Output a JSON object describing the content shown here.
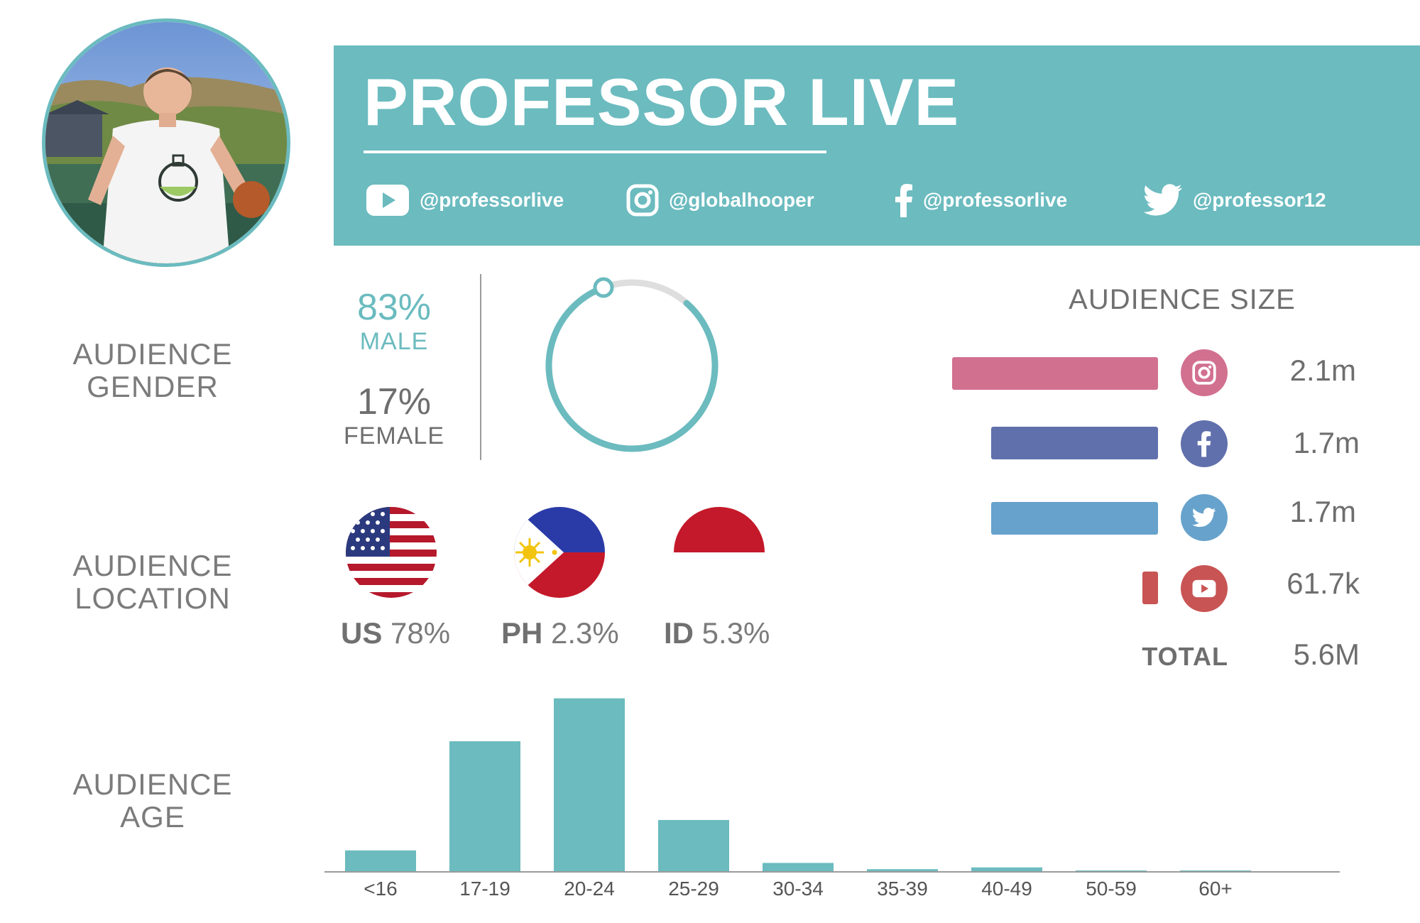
{
  "header": {
    "title": "PROFESSOR LIVE",
    "socials": [
      {
        "platform": "youtube",
        "icon": "youtube-icon",
        "handle": "@professorlive"
      },
      {
        "platform": "instagram",
        "icon": "instagram-icon",
        "handle": "@globalhooper"
      },
      {
        "platform": "facebook",
        "icon": "facebook-icon",
        "handle": "@professorlive"
      },
      {
        "platform": "twitter",
        "icon": "twitter-icon",
        "handle": "@professor12"
      }
    ]
  },
  "sections": {
    "gender_line1": "AUDIENCE",
    "gender_line2": "GENDER",
    "location_line1": "AUDIENCE",
    "location_line2": "LOCATION",
    "age_line1": "AUDIENCE",
    "age_line2": "AGE"
  },
  "gender": {
    "male_pct": "83%",
    "male_label": "MALE",
    "female_pct": "17%",
    "female_label": "FEMALE",
    "male_fraction": 0.83
  },
  "location": [
    {
      "code": "US",
      "pct": "78%",
      "flag": "us-flag-icon"
    },
    {
      "code": "PH",
      "pct": "2.3%",
      "flag": "ph-flag-icon"
    },
    {
      "code": "ID",
      "pct": "5.3%",
      "flag": "id-flag-icon"
    }
  ],
  "audience_size": {
    "title": "AUDIENCE SIZE",
    "rows": [
      {
        "platform": "instagram",
        "icon": "instagram-icon",
        "value": "2.1m",
        "amount": 2.1,
        "color": "#d27090"
      },
      {
        "platform": "facebook",
        "icon": "facebook-icon",
        "value": "1.7m",
        "amount": 1.7,
        "color": "#6070ac"
      },
      {
        "platform": "twitter",
        "icon": "twitter-icon",
        "value": "1.7m",
        "amount": 1.7,
        "color": "#66a2cc"
      },
      {
        "platform": "youtube",
        "icon": "youtube-icon",
        "value": "61.7k",
        "amount": 0.0617,
        "color": "#c85454"
      }
    ],
    "total_label": "TOTAL",
    "total_value": "5.6M"
  },
  "colors": {
    "accent": "#6bbbbf"
  },
  "chart_data": {
    "type": "bar",
    "categories": [
      "<16",
      "17-19",
      "20-24",
      "25-29",
      "30-34",
      "35-39",
      "40-49",
      "50-59",
      "60+"
    ],
    "values": [
      12,
      73,
      97,
      29,
      5,
      1.5,
      2.5,
      0.5,
      0.5
    ],
    "title": "",
    "xlabel": "",
    "ylabel": "",
    "ylim": [
      0,
      100
    ],
    "grid": false,
    "legend": "none"
  }
}
